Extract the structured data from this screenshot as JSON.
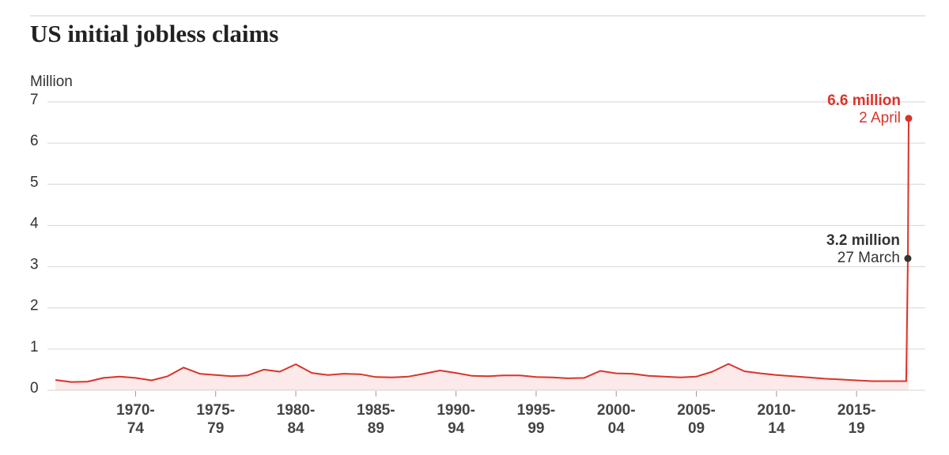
{
  "chart_data": {
    "type": "line",
    "title": "US initial jobless claims",
    "y_label": "Million",
    "xlim": [
      1966.5,
      2020.3
    ],
    "ylim": [
      0,
      7
    ],
    "yticks": [
      0,
      1,
      2,
      3,
      4,
      5,
      6,
      7
    ],
    "xticks": [
      {
        "value": 1972,
        "label": [
          "1970-",
          "74"
        ]
      },
      {
        "value": 1977,
        "label": [
          "1975-",
          "79"
        ]
      },
      {
        "value": 1982,
        "label": [
          "1980-",
          "84"
        ]
      },
      {
        "value": 1987,
        "label": [
          "1985-",
          "89"
        ]
      },
      {
        "value": 1992,
        "label": [
          "1990-",
          "94"
        ]
      },
      {
        "value": 1997,
        "label": [
          "1995-",
          "99"
        ]
      },
      {
        "value": 2002,
        "label": [
          "2000-",
          "04"
        ]
      },
      {
        "value": 2007,
        "label": [
          "2005-",
          "09"
        ]
      },
      {
        "value": 2012,
        "label": [
          "2010-",
          "14"
        ]
      },
      {
        "value": 2017,
        "label": [
          "2015-",
          "19"
        ]
      }
    ],
    "grid": true,
    "series": [
      {
        "name": "Initial jobless claims",
        "color": "#d9342b",
        "x": [
          1967,
          1968,
          1969,
          1970,
          1971,
          1972,
          1973,
          1974,
          1975,
          1976,
          1977,
          1978,
          1979,
          1980,
          1981,
          1982,
          1983,
          1984,
          1985,
          1986,
          1987,
          1988,
          1989,
          1990,
          1991,
          1992,
          1993,
          1994,
          1995,
          1996,
          1997,
          1998,
          1999,
          2000,
          2001,
          2002,
          2003,
          2004,
          2005,
          2006,
          2007,
          2008,
          2009,
          2010,
          2011,
          2012,
          2013,
          2014,
          2015,
          2016,
          2017,
          2018,
          2019,
          2020.1,
          2020.2,
          2020.25
        ],
        "values": [
          0.25,
          0.2,
          0.21,
          0.3,
          0.33,
          0.3,
          0.24,
          0.34,
          0.55,
          0.4,
          0.37,
          0.34,
          0.36,
          0.5,
          0.45,
          0.63,
          0.42,
          0.37,
          0.4,
          0.39,
          0.32,
          0.31,
          0.33,
          0.4,
          0.48,
          0.42,
          0.35,
          0.34,
          0.36,
          0.36,
          0.32,
          0.31,
          0.29,
          0.3,
          0.47,
          0.41,
          0.4,
          0.35,
          0.33,
          0.31,
          0.33,
          0.45,
          0.64,
          0.46,
          0.41,
          0.37,
          0.34,
          0.31,
          0.28,
          0.26,
          0.24,
          0.22,
          0.22,
          0.22,
          3.2,
          6.6
        ]
      }
    ],
    "annotations": [
      {
        "text": "6.6 million",
        "subtext": "2 April",
        "color": "#d9342b"
      },
      {
        "text": "3.2 million",
        "subtext": "27 March",
        "color": "#333333"
      }
    ]
  }
}
